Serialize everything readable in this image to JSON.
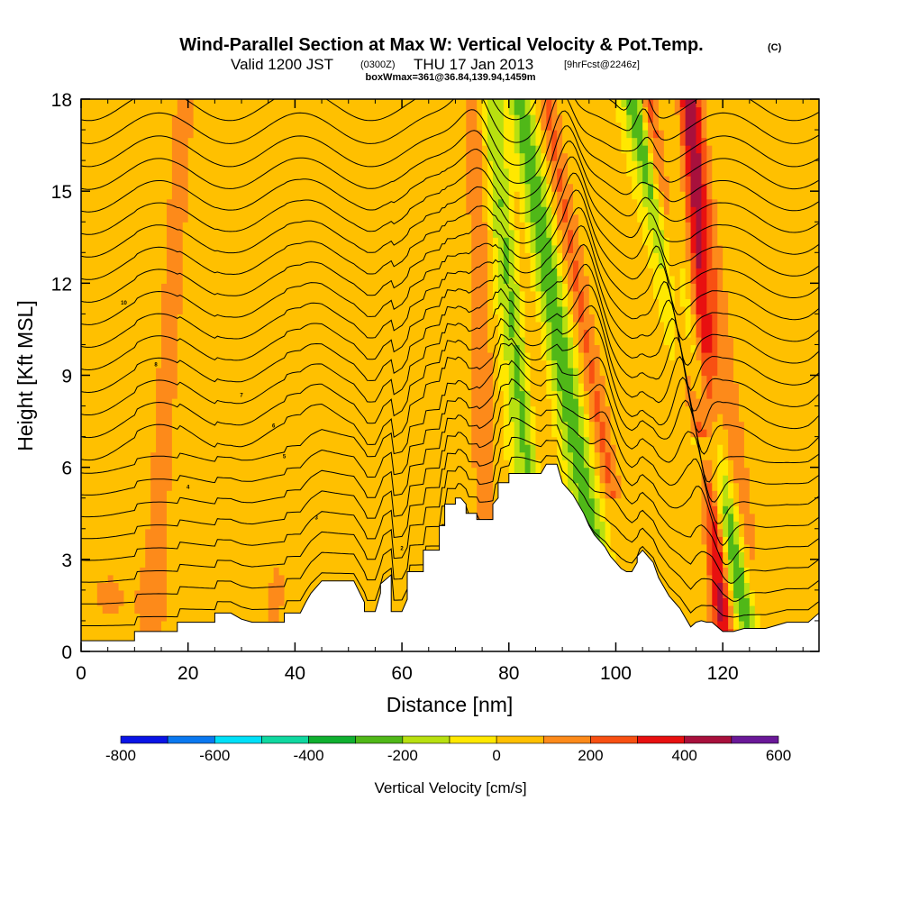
{
  "chart_data": {
    "type": "heatmap",
    "title": "Wind-Parallel Section at Max W: Vertical Velocity & Pot.Temp.",
    "title_mark": "(C)",
    "subtitle": {
      "valid": "Valid 1200 JST",
      "utc": "(0300Z)",
      "date": "THU 17 Jan 2013",
      "fcst": "[9hrFcst@2246z]",
      "box": "boxWmax=361@36.84,139.94,1459m"
    },
    "xlabel": "Distance [nm]",
    "ylabel": "Height [Kft MSL]",
    "xlim": [
      0,
      138
    ],
    "ylim": [
      0,
      18
    ],
    "xticks": [
      0,
      20,
      40,
      60,
      80,
      100,
      120
    ],
    "yticks": [
      0,
      3,
      6,
      9,
      12,
      15,
      18
    ],
    "grid": false,
    "colorbar": {
      "label": "Vertical Velocity [cm/s]",
      "ticks": [
        -800,
        -600,
        -400,
        -200,
        0,
        200,
        400,
        600
      ],
      "bins": [
        -800,
        -700,
        -600,
        -500,
        -400,
        -300,
        -200,
        -100,
        0,
        100,
        200,
        300,
        400,
        500,
        600
      ],
      "colors": [
        "#0a14e6",
        "#0a78f0",
        "#00e0f8",
        "#10d8a0",
        "#10b030",
        "#50b818",
        "#b8e010",
        "#ffe800",
        "#ffc000",
        "#fd8a1a",
        "#f85012",
        "#e81010",
        "#a8103c",
        "#6a1898"
      ]
    },
    "terrain_nm": [
      0,
      10,
      10,
      18,
      18,
      25,
      25,
      28,
      30,
      32,
      33,
      38,
      38,
      41,
      42,
      43,
      45,
      47,
      51,
      53,
      53,
      55,
      56,
      56,
      58,
      58,
      60,
      61,
      61,
      64,
      64,
      67,
      67,
      68,
      68,
      69,
      70,
      70,
      71,
      72,
      72,
      74,
      74,
      77,
      77,
      78,
      78,
      80,
      80,
      81,
      81,
      82,
      84,
      86,
      87,
      88,
      89,
      90,
      91,
      92,
      93,
      94,
      95,
      96,
      97,
      98,
      99,
      100,
      101,
      102,
      103,
      104,
      104,
      105,
      106,
      107,
      108,
      109,
      110,
      111,
      112,
      113,
      114,
      115,
      116,
      117,
      118,
      120,
      122,
      124,
      126,
      128,
      130,
      132,
      134,
      136,
      138
    ],
    "terrain_kft": [
      0.35,
      0.35,
      0.65,
      0.65,
      0.95,
      0.95,
      1.25,
      1.25,
      1.05,
      0.95,
      0.95,
      0.95,
      1.25,
      1.25,
      1.6,
      1.9,
      2.3,
      2.3,
      2.3,
      1.6,
      1.3,
      1.3,
      1.9,
      2.2,
      2.5,
      1.3,
      1.3,
      1.7,
      2.6,
      2.6,
      3.3,
      3.3,
      4.1,
      4.1,
      4.8,
      4.8,
      4.8,
      5.0,
      5.0,
      4.8,
      4.5,
      4.5,
      4.3,
      4.3,
      4.8,
      5.0,
      5.5,
      5.5,
      5.8,
      5.8,
      5.8,
      5.8,
      5.8,
      5.8,
      6.1,
      6.1,
      6.1,
      5.5,
      5.3,
      5.1,
      4.8,
      4.5,
      4.1,
      3.8,
      3.6,
      3.4,
      3.1,
      2.9,
      2.7,
      2.6,
      2.6,
      2.9,
      3.1,
      3.3,
      3.1,
      2.9,
      2.4,
      2.1,
      1.8,
      1.6,
      1.4,
      1.1,
      0.8,
      0.95,
      1.0,
      0.95,
      0.95,
      0.65,
      0.65,
      0.75,
      0.75,
      0.75,
      0.85,
      0.95,
      0.95,
      0.95,
      1.25
    ],
    "contour_labels": [
      "10",
      "8",
      "7",
      "6",
      "5",
      "4",
      "3",
      "2",
      "1"
    ]
  }
}
